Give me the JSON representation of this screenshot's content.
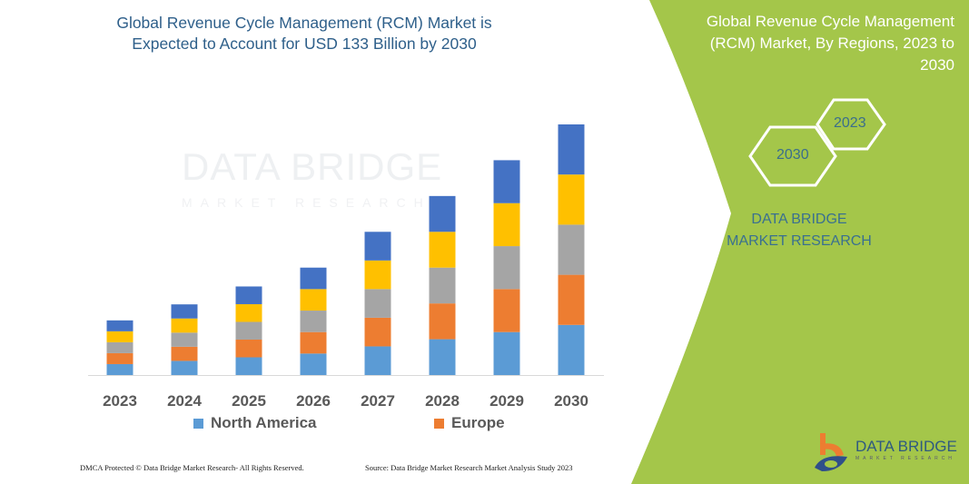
{
  "title": "Global Revenue Cycle Management (RCM) Market is Expected to Account for USD 133 Billion by 2030",
  "watermark": {
    "line1": "DATA BRIDGE",
    "line2": "MARKET RESEARCH"
  },
  "chart_data": {
    "type": "bar",
    "stacked": true,
    "title": "Global Revenue Cycle Management (RCM) Market is Expected to Account for USD 133 Billion by 2030",
    "xlabel": "",
    "ylabel": "",
    "grid": false,
    "legend_position": "bottom",
    "categories": [
      "2023",
      "2024",
      "2025",
      "2026",
      "2027",
      "2028",
      "2029",
      "2030"
    ],
    "series": [
      {
        "name": "North America",
        "color": "#5b9bd5",
        "values": [
          5.8,
          7.5,
          9.4,
          11.4,
          15.2,
          19.0,
          22.8,
          26.6
        ]
      },
      {
        "name": "Europe",
        "color": "#ed7d31",
        "values": [
          5.8,
          7.5,
          9.4,
          11.4,
          15.2,
          19.0,
          22.8,
          26.6
        ]
      },
      {
        "color": "#a5a5a5",
        "values": [
          5.8,
          7.5,
          9.4,
          11.4,
          15.2,
          19.0,
          22.8,
          26.6
        ]
      },
      {
        "color": "#ffc000",
        "values": [
          5.8,
          7.5,
          9.4,
          11.4,
          15.2,
          19.0,
          22.8,
          26.6
        ]
      },
      {
        "color": "#4472c4",
        "values": [
          5.8,
          7.5,
          9.4,
          11.4,
          15.2,
          19.0,
          22.8,
          26.6
        ]
      }
    ],
    "ylim": [
      0,
      133
    ]
  },
  "legend": [
    "North America",
    "Europe"
  ],
  "footer": {
    "left": "DMCA Protected © Data Bridge Market Research- All Rights Reserved.",
    "right": "Source: Data Bridge Market Research Market Analysis Study 2023"
  },
  "panel": {
    "color": "#a4c64a",
    "title": "Global Revenue Cycle Management (RCM) Market, By Regions, 2023 to 2030",
    "hex_a": "2023",
    "hex_b": "2030",
    "brand": "DATA BRIDGE MARKET RESEARCH",
    "logo_text": "DATA BRIDGE",
    "logo_sub": "MARKET RESEARCH"
  }
}
